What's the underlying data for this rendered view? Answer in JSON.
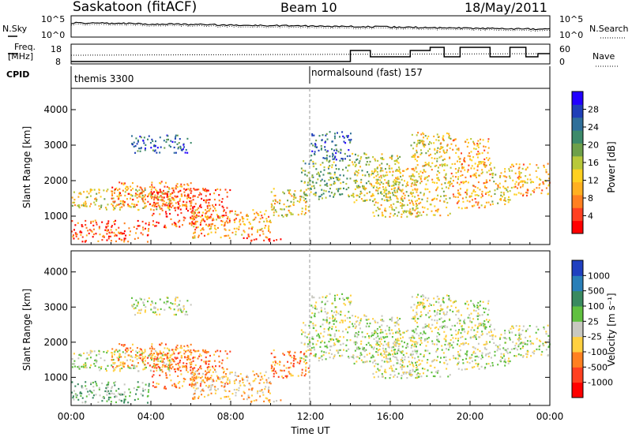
{
  "header": {
    "station": "Saskatoon (fitACF)",
    "beam": "Beam 10",
    "date": "18/May/2011"
  },
  "panels": {
    "nsky": {
      "left_label": "N.Sky",
      "left_ticks": [
        "10^5",
        "10^0"
      ],
      "right_ticks": [
        "10^5",
        "10^0"
      ],
      "right_label": "N.Search"
    },
    "freq": {
      "left_label_1": "Freq.",
      "left_label_2": "[MHz]",
      "left_ticks": [
        "18",
        "8"
      ],
      "right_ticks": [
        "60",
        "0"
      ],
      "right_label": "Nave"
    },
    "cpid": {
      "label": "CPID",
      "modes": [
        "themis 3300",
        "normalsound (fast) 157"
      ]
    }
  },
  "chart_data": [
    {
      "type": "heatmap",
      "title": "",
      "ylabel": "Slant Range [km]",
      "xlabel": "",
      "y_ticks": [
        "4000",
        "3000",
        "2000",
        "1000"
      ],
      "ylim": [
        200,
        4600
      ],
      "colorbar_label": "Power [dB]",
      "colorbar_ticks": [
        "28",
        "24",
        "20",
        "16",
        "12",
        "8",
        "4"
      ],
      "colorbar_colors": [
        "#2200ff",
        "#1f3fb8",
        "#2f6f9a",
        "#3d8a6a",
        "#6ea04a",
        "#b8c83a",
        "#ffd020",
        "#ffb020",
        "#ff8020",
        "#ff4020",
        "#ff0000"
      ]
    },
    {
      "type": "heatmap",
      "title": "",
      "ylabel": "Slant Range [km]",
      "xlabel": "Time UT",
      "x_ticks": [
        "00:00",
        "04:00",
        "08:00",
        "12:00",
        "16:00",
        "20:00",
        "00:00"
      ],
      "y_ticks": [
        "4000",
        "3000",
        "2000",
        "1000"
      ],
      "ylim": [
        200,
        4600
      ],
      "colorbar_label": "Velocity [m s⁻¹]",
      "colorbar_ticks": [
        "1000",
        "500",
        "100",
        "25",
        "-25",
        "-100",
        "-500",
        "-1000"
      ],
      "colorbar_colors": [
        "#2040c0",
        "#2a7fb8",
        "#3a8a60",
        "#60c040",
        "#c8c8c0",
        "#ffd040",
        "#ff8020",
        "#ff4020",
        "#ff0000"
      ]
    }
  ]
}
